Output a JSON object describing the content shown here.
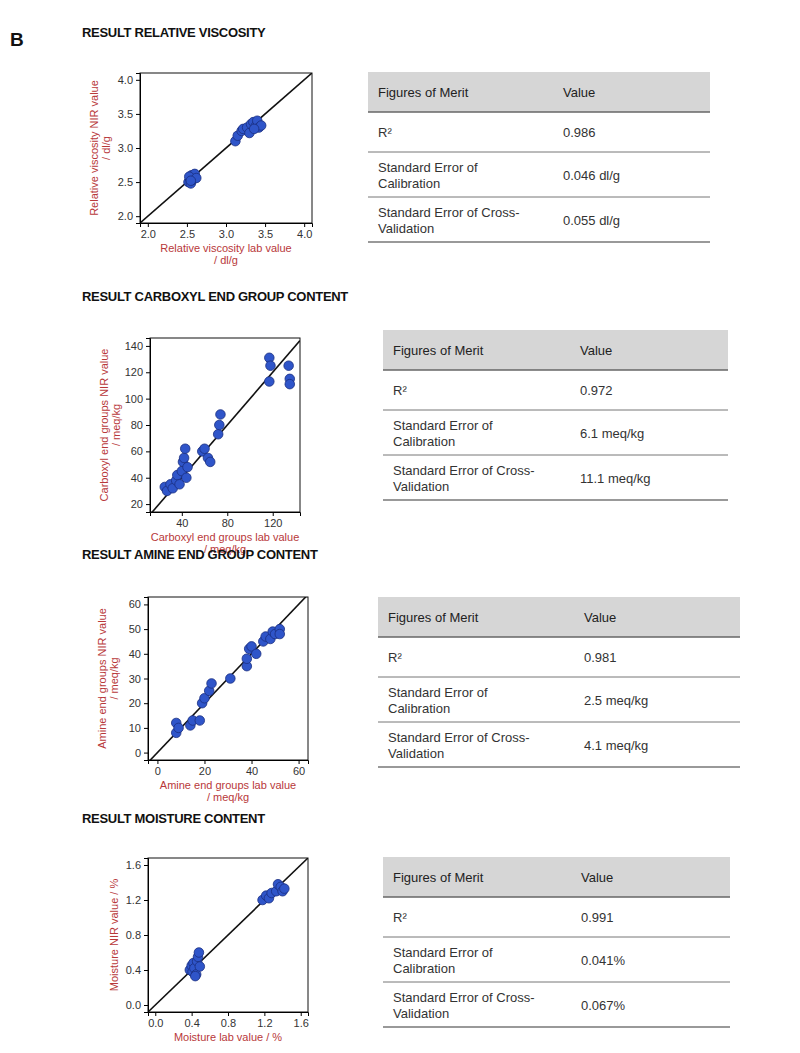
{
  "panel_label": "B",
  "chart_data": [
    {
      "type": "scatter",
      "title": "RESULT RELATIVE VISCOSITY",
      "x_label": [
        "Relative viscosity lab value",
        "/ dl/g"
      ],
      "y_label": [
        "Relative viscosity NIR value",
        "/ dl/g"
      ],
      "x": [
        2.52,
        2.54,
        2.55,
        2.56,
        2.57,
        2.58,
        2.6,
        2.53,
        2.62,
        2.55,
        3.12,
        3.15,
        3.2,
        3.22,
        3.27,
        3.3,
        3.32,
        3.35,
        3.38,
        3.4,
        3.42,
        3.45,
        3.36
      ],
      "values": [
        2.5,
        2.55,
        2.48,
        2.6,
        2.53,
        2.57,
        2.62,
        2.58,
        2.56,
        2.52,
        3.1,
        3.18,
        3.25,
        3.28,
        3.3,
        3.22,
        3.35,
        3.38,
        3.32,
        3.4,
        3.3,
        3.33,
        3.28
      ],
      "color": "#2f55c9",
      "marker": "circle",
      "grid": false,
      "xlim": [
        1.9,
        4.1
      ],
      "ylim": [
        1.9,
        4.1
      ],
      "xticks": [
        {
          "value": 2,
          "label": "2.0"
        },
        2.5,
        {
          "value": 3,
          "label": "3.0"
        },
        3.5,
        {
          "value": 4,
          "label": "4.0"
        }
      ],
      "yticks": [
        {
          "value": 2,
          "label": "2.0"
        },
        2.5,
        {
          "value": 3,
          "label": "3.0"
        },
        3.5,
        {
          "value": 4,
          "label": "4.0"
        }
      ]
    },
    {
      "type": "scatter",
      "title": "RESULT CARBOXYL END GROUP CONTENT",
      "x_label": [
        "Carboxyl end groups lab value",
        "/ meq/kg"
      ],
      "y_label": [
        "Carboxyl end groups NIR value",
        "/ meq/kg"
      ],
      "x": [
        25,
        27,
        30,
        32,
        35,
        36,
        38,
        40,
        41,
        42,
        43,
        44,
        45,
        58,
        60,
        63,
        65,
        72,
        73,
        74,
        117,
        117,
        118,
        134,
        135,
        135
      ],
      "values": [
        33,
        30,
        35,
        32,
        38,
        42,
        35,
        45,
        52,
        55,
        62,
        40,
        48,
        60,
        62,
        55,
        52,
        73,
        80,
        88,
        131,
        113,
        125,
        125,
        115,
        111
      ],
      "color": "#2f55c9",
      "marker": "circle",
      "grid": false,
      "xlim": [
        12,
        144
      ],
      "ylim": [
        14,
        146
      ],
      "xticks": [
        40,
        80,
        120
      ],
      "yticks": [
        20,
        40,
        60,
        80,
        100,
        120,
        140
      ]
    },
    {
      "type": "scatter",
      "title": "RESULT AMINE END GROUP CONTENT",
      "x_label": [
        "Amine end groups lab value",
        "/ meq/kg"
      ],
      "y_label": [
        "Amine end groups NIR value",
        "/ meq/kg"
      ],
      "x": [
        8,
        8,
        9,
        14,
        15,
        18,
        19,
        20,
        22,
        23,
        31,
        38,
        38,
        39,
        40,
        42,
        45,
        46,
        48,
        49,
        50,
        52,
        52
      ],
      "values": [
        8,
        12,
        10,
        11,
        13,
        13,
        20,
        22,
        25,
        28,
        30,
        35,
        38,
        42,
        43,
        40,
        45,
        47,
        46,
        49,
        48,
        50,
        48
      ],
      "color": "#2f55c9",
      "marker": "circle",
      "grid": false,
      "xlim": [
        -4,
        64
      ],
      "ylim": [
        -3,
        63
      ],
      "xticks": [
        0,
        20,
        40,
        60
      ],
      "yticks": [
        0,
        10,
        20,
        30,
        40,
        50,
        60
      ]
    },
    {
      "type": "scatter",
      "title": "RESULT MOISTURE CONTENT",
      "x_label": [
        "Moisture lab value / %"
      ],
      "y_label": [
        "Moisture NIR value / %"
      ],
      "x": [
        0.38,
        0.4,
        0.41,
        0.42,
        0.43,
        0.45,
        0.46,
        0.47,
        0.48,
        0.49,
        0.44,
        1.18,
        1.22,
        1.25,
        1.28,
        1.33,
        1.35,
        1.38,
        1.4,
        1.42
      ],
      "values": [
        0.4,
        0.45,
        0.38,
        0.48,
        0.42,
        0.35,
        0.5,
        0.55,
        0.6,
        0.44,
        0.33,
        1.2,
        1.25,
        1.22,
        1.28,
        1.3,
        1.38,
        1.35,
        1.3,
        1.33
      ],
      "color": "#2f55c9",
      "marker": "circle",
      "grid": false,
      "xlim": [
        -0.08,
        1.68
      ],
      "ylim": [
        -0.08,
        1.68
      ],
      "xticks": [
        {
          "value": 0,
          "label": "0.0"
        },
        0.4,
        0.8,
        1.2,
        1.6
      ],
      "yticks": [
        {
          "value": 0,
          "label": "0.0"
        },
        0.4,
        0.8,
        1.2,
        1.6
      ]
    }
  ],
  "tables": [
    {
      "header": [
        "Figures of Merit",
        "Value"
      ],
      "rows": [
        [
          "R²",
          "0.986"
        ],
        [
          "Standard Error of Calibration",
          "0.046 dl/g"
        ],
        [
          "Standard Error of Cross-Validation",
          "0.055 dl/g"
        ]
      ]
    },
    {
      "header": [
        "Figures of Merit",
        "Value"
      ],
      "rows": [
        [
          "R²",
          "0.972"
        ],
        [
          "Standard Error of Calibration",
          "6.1 meq/kg"
        ],
        [
          "Standard Error of Cross-Validation",
          "11.1 meq/kg"
        ]
      ]
    },
    {
      "header": [
        "Figures of Merit",
        "Value"
      ],
      "rows": [
        [
          "R²",
          "0.981"
        ],
        [
          "Standard Error of Calibration",
          "2.5 meq/kg"
        ],
        [
          "Standard Error of Cross-Validation",
          "4.1 meq/kg"
        ]
      ]
    },
    {
      "header": [
        "Figures of Merit",
        "Value"
      ],
      "rows": [
        [
          "R²",
          "0.991"
        ],
        [
          "Standard Error of Calibration",
          "0.041%"
        ],
        [
          "Standard Error of Cross-Validation",
          "0.067%"
        ]
      ]
    }
  ]
}
